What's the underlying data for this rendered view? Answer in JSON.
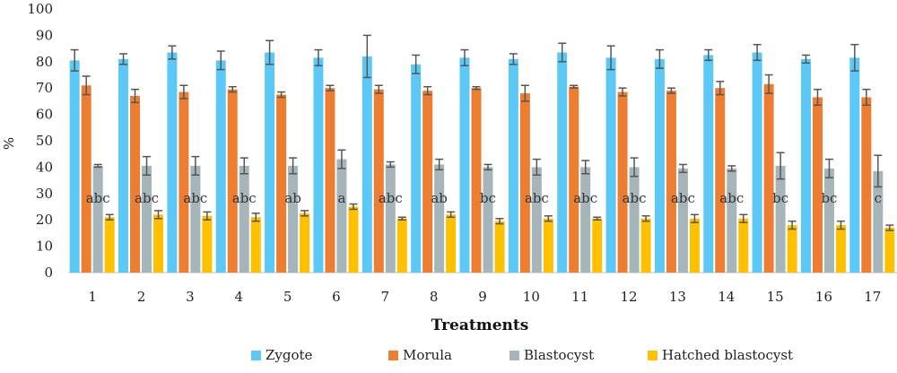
{
  "chart_data": {
    "type": "bar",
    "xlabel": "Treatments",
    "ylabel": "%",
    "ylim": [
      0,
      100
    ],
    "yticks": [
      0,
      10,
      20,
      30,
      40,
      50,
      60,
      70,
      80,
      90,
      100
    ],
    "categories": [
      "1",
      "2",
      "3",
      "4",
      "5",
      "6",
      "7",
      "8",
      "9",
      "10",
      "11",
      "12",
      "13",
      "14",
      "15",
      "16",
      "17"
    ],
    "legend_position": "bottom",
    "series": [
      {
        "name": "Zygote",
        "color": "#5bc8f5",
        "values": [
          80.5,
          81,
          83.5,
          80.5,
          83.5,
          81.5,
          82,
          79,
          81.5,
          81,
          83.5,
          81.5,
          81,
          82.5,
          83.5,
          81,
          81.5
        ],
        "errors": [
          4,
          2,
          2.5,
          3.5,
          4.5,
          3,
          8,
          3.5,
          3,
          2,
          3.5,
          4.5,
          3.5,
          2,
          3,
          1.5,
          5
        ]
      },
      {
        "name": "Morula",
        "color": "#ed7d31",
        "values": [
          71,
          67,
          68.5,
          69.5,
          67.5,
          70,
          69.5,
          69,
          70,
          68,
          70.5,
          68.5,
          69,
          70,
          71.5,
          66.5,
          66.5
        ],
        "errors": [
          3.5,
          2.5,
          2.5,
          1,
          1,
          1,
          1.5,
          1.5,
          0.5,
          3,
          0.5,
          1.5,
          1,
          2.5,
          3.5,
          3,
          3
        ]
      },
      {
        "name": "Blastocyst",
        "color": "#a5b5b9",
        "values": [
          40.5,
          40.5,
          40.5,
          40.5,
          40.5,
          43,
          41,
          41,
          40,
          40,
          40,
          40,
          39.5,
          39.5,
          40.5,
          39.5,
          38.5
        ],
        "errors": [
          0.5,
          3.5,
          3.5,
          3,
          3,
          3.5,
          1,
          2,
          1,
          3,
          2.5,
          3.5,
          1.5,
          1,
          5,
          3.5,
          6
        ]
      },
      {
        "name": "Hatched blastocyst",
        "color": "#ffc000",
        "values": [
          21,
          22,
          21.5,
          21,
          22.5,
          25,
          20.5,
          22,
          19.5,
          20.5,
          20.5,
          20.5,
          20.5,
          20.5,
          18,
          18,
          17
        ],
        "errors": [
          1,
          1.5,
          1.5,
          1.5,
          1,
          1,
          0.5,
          1,
          1,
          1,
          0.5,
          1,
          1.5,
          1.5,
          1.5,
          1.5,
          1
        ]
      }
    ],
    "annotations": [
      "abc",
      "abc",
      "abc",
      "abc",
      "ab",
      "a",
      "abc",
      "ab",
      "bc",
      "abc",
      "abc",
      "abc",
      "abc",
      "abc",
      "bc",
      "bc",
      "c"
    ]
  }
}
